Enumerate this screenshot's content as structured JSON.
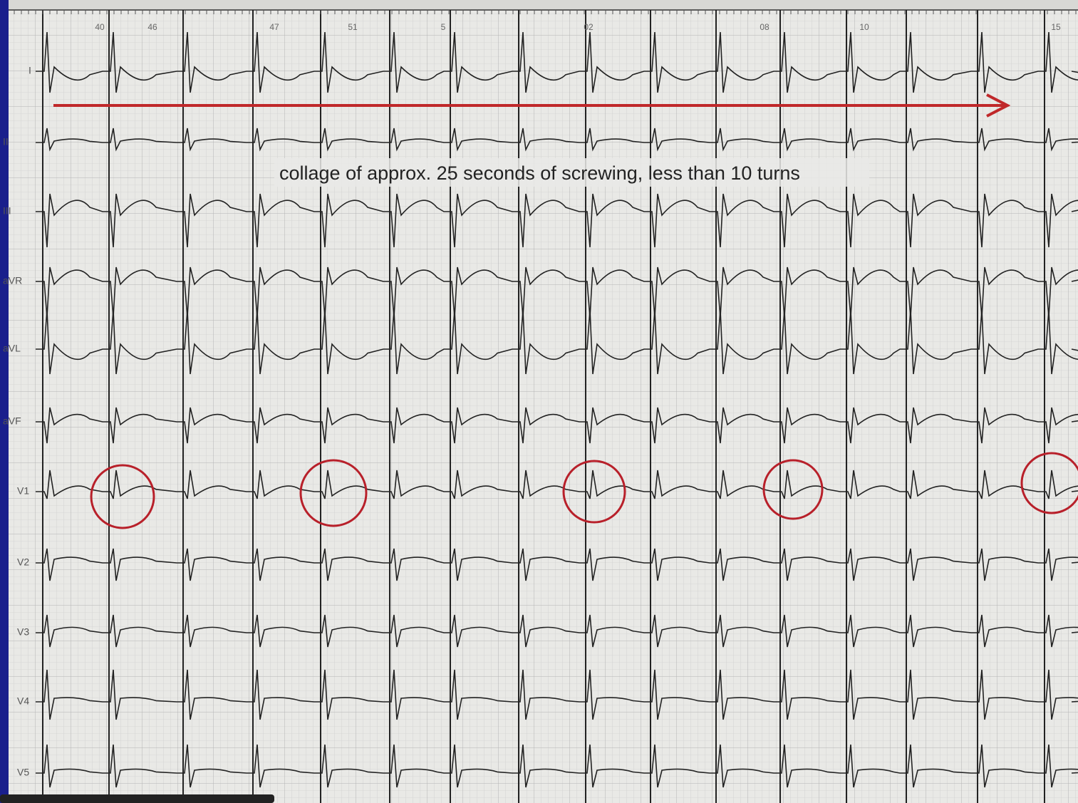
{
  "header": {
    "time_marks": [
      "40",
      "46",
      "47",
      "51",
      "5",
      "02",
      "08",
      "10",
      "15"
    ]
  },
  "leads": [
    "I",
    "II",
    "III",
    "aVR",
    "aVL",
    "aVF",
    "V1",
    "V2",
    "V3",
    "V4",
    "V5"
  ],
  "annotation": "collage of approx. 25 seconds of screwing, less than 10 turns"
}
